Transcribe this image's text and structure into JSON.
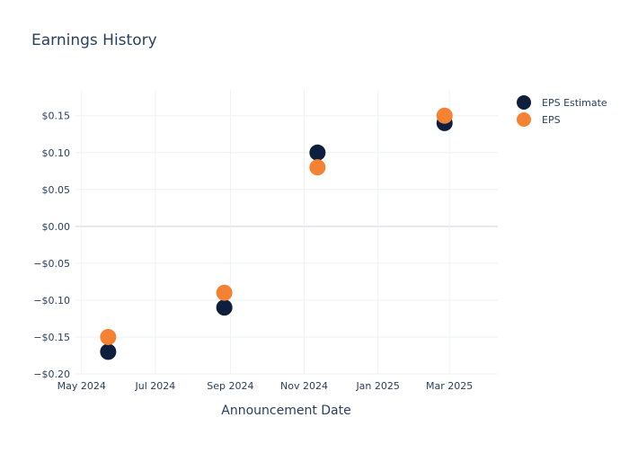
{
  "chart_data": {
    "type": "scatter",
    "title": "Earnings History",
    "xlabel": "Announcement Date",
    "ylabel": "",
    "x_type": "date",
    "xlim": [
      "2024-04-26",
      "2025-04-10"
    ],
    "ylim": [
      -0.2,
      0.185
    ],
    "x_ticks": [
      {
        "value": "2024-05-01",
        "label": "May 2024"
      },
      {
        "value": "2024-07-01",
        "label": "Jul 2024"
      },
      {
        "value": "2024-09-01",
        "label": "Sep 2024"
      },
      {
        "value": "2024-11-01",
        "label": "Nov 2024"
      },
      {
        "value": "2025-01-01",
        "label": "Jan 2025"
      },
      {
        "value": "2025-03-01",
        "label": "Mar 2025"
      }
    ],
    "y_ticks": [
      {
        "value": 0.15,
        "label": "$0.15"
      },
      {
        "value": 0.1,
        "label": "$0.10"
      },
      {
        "value": 0.05,
        "label": "$0.05"
      },
      {
        "value": 0.0,
        "label": "$0.00"
      },
      {
        "value": -0.05,
        "label": "−$0.05"
      },
      {
        "value": -0.1,
        "label": "−$0.10"
      },
      {
        "value": -0.15,
        "label": "−$0.15"
      },
      {
        "value": -0.2,
        "label": "−$0.20"
      }
    ],
    "grid": true,
    "legend_position": "top-right",
    "series": [
      {
        "name": "EPS Estimate",
        "color": "#0d1f3c",
        "points": [
          {
            "x": "2024-05-23",
            "y": -0.17
          },
          {
            "x": "2024-08-27",
            "y": -0.11
          },
          {
            "x": "2024-11-12",
            "y": 0.1
          },
          {
            "x": "2025-02-25",
            "y": 0.14
          }
        ]
      },
      {
        "name": "EPS",
        "color": "#f58232",
        "points": [
          {
            "x": "2024-05-23",
            "y": -0.15
          },
          {
            "x": "2024-08-27",
            "y": -0.09
          },
          {
            "x": "2024-11-12",
            "y": 0.08
          },
          {
            "x": "2025-02-25",
            "y": 0.15
          }
        ]
      }
    ]
  }
}
